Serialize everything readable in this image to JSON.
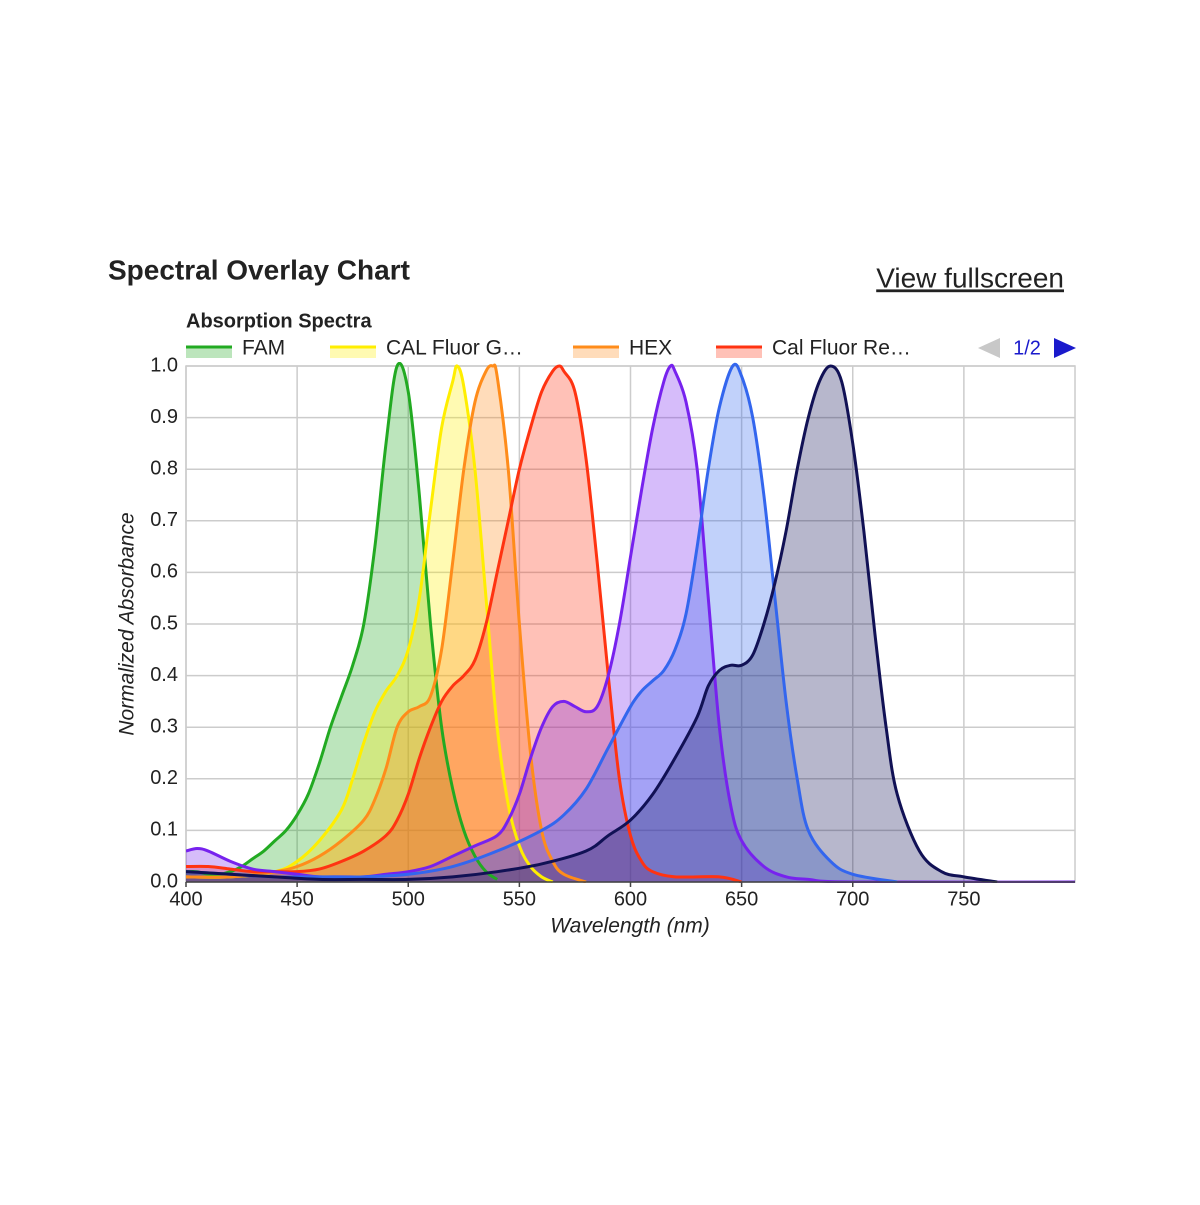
{
  "header": {
    "title": "Spectral Overlay Chart",
    "link": "View fullscreen"
  },
  "pager": "1/2",
  "chart_data": {
    "type": "area",
    "title": "Absorption Spectra",
    "x_label": "Wavelength (nm)",
    "y_label": "Normalized Absorbance",
    "xlim": [
      400,
      800
    ],
    "ylim": [
      0,
      1
    ],
    "xticks": [
      400,
      450,
      500,
      550,
      600,
      650,
      700,
      750
    ],
    "yticks": [
      {
        "value": 0,
        "label": "0.0"
      },
      0.1,
      0.2,
      0.3,
      0.4,
      0.5,
      0.6,
      0.7,
      0.8,
      0.9,
      {
        "value": 1,
        "label": "1.0"
      }
    ],
    "grid": true,
    "legend": "top",
    "series": [
      {
        "name": "FAM",
        "color": "#22aa22",
        "x": [
          400,
          405,
          410,
          415,
          420,
          425,
          430,
          435,
          440,
          445,
          450,
          455,
          460,
          465,
          470,
          475,
          480,
          485,
          490,
          495,
          500,
          505,
          510,
          515,
          520,
          525,
          530,
          535,
          540
        ],
        "values": [
          0.02,
          0.02,
          0.015,
          0.015,
          0.02,
          0.03,
          0.045,
          0.06,
          0.08,
          0.1,
          0.13,
          0.17,
          0.23,
          0.3,
          0.36,
          0.42,
          0.5,
          0.65,
          0.85,
          1.0,
          0.95,
          0.75,
          0.5,
          0.3,
          0.18,
          0.1,
          0.05,
          0.02,
          0.005
        ]
      },
      {
        "name": "CAL Fluor G…",
        "color": "#ffee00",
        "x": [
          400,
          420,
          440,
          450,
          460,
          470,
          475,
          480,
          485,
          490,
          495,
          500,
          505,
          510,
          515,
          520,
          522,
          525,
          530,
          535,
          540,
          545,
          550,
          555,
          560,
          565
        ],
        "values": [
          0.01,
          0.01,
          0.02,
          0.04,
          0.08,
          0.14,
          0.2,
          0.27,
          0.33,
          0.37,
          0.4,
          0.45,
          0.55,
          0.72,
          0.88,
          0.97,
          1.0,
          0.96,
          0.8,
          0.55,
          0.3,
          0.15,
          0.07,
          0.03,
          0.01,
          0
        ]
      },
      {
        "name": "HEX",
        "color": "#ff8c1a",
        "x": [
          400,
          420,
          440,
          450,
          460,
          470,
          480,
          485,
          490,
          495,
          500,
          505,
          510,
          515,
          520,
          525,
          530,
          535,
          538,
          540,
          545,
          550,
          555,
          560,
          565,
          570,
          580
        ],
        "values": [
          0.01,
          0.01,
          0.02,
          0.03,
          0.05,
          0.08,
          0.12,
          0.16,
          0.22,
          0.3,
          0.33,
          0.34,
          0.36,
          0.45,
          0.62,
          0.8,
          0.93,
          0.99,
          1.0,
          0.98,
          0.8,
          0.5,
          0.25,
          0.1,
          0.04,
          0.015,
          0
        ]
      },
      {
        "name": "Cal Fluor Re…",
        "color": "#ff3311",
        "x": [
          400,
          410,
          420,
          430,
          440,
          450,
          460,
          470,
          480,
          490,
          495,
          500,
          505,
          510,
          515,
          520,
          525,
          530,
          535,
          540,
          545,
          550,
          555,
          560,
          565,
          568,
          570,
          575,
          580,
          585,
          590,
          595,
          600,
          605,
          610,
          620,
          640,
          650
        ],
        "values": [
          0.03,
          0.03,
          0.025,
          0.02,
          0.02,
          0.02,
          0.025,
          0.04,
          0.06,
          0.09,
          0.12,
          0.17,
          0.24,
          0.3,
          0.35,
          0.38,
          0.4,
          0.43,
          0.5,
          0.6,
          0.7,
          0.8,
          0.88,
          0.95,
          0.99,
          1.0,
          0.99,
          0.95,
          0.82,
          0.62,
          0.4,
          0.2,
          0.09,
          0.04,
          0.02,
          0.01,
          0.01,
          0
        ]
      },
      {
        "color": "#7722ee",
        "x": [
          400,
          405,
          410,
          420,
          430,
          440,
          450,
          460,
          470,
          480,
          490,
          500,
          510,
          520,
          530,
          540,
          545,
          550,
          555,
          560,
          565,
          570,
          575,
          580,
          585,
          590,
          595,
          600,
          605,
          610,
          615,
          618,
          620,
          625,
          630,
          635,
          640,
          645,
          650,
          660,
          670,
          680,
          700,
          800
        ],
        "values": [
          0.06,
          0.065,
          0.06,
          0.04,
          0.025,
          0.02,
          0.015,
          0.01,
          0.01,
          0.01,
          0.015,
          0.02,
          0.03,
          0.05,
          0.07,
          0.09,
          0.12,
          0.17,
          0.24,
          0.3,
          0.34,
          0.35,
          0.34,
          0.33,
          0.34,
          0.4,
          0.5,
          0.63,
          0.76,
          0.88,
          0.97,
          1.0,
          0.99,
          0.93,
          0.8,
          0.55,
          0.3,
          0.15,
          0.08,
          0.03,
          0.01,
          0.005,
          0,
          0
        ]
      },
      {
        "color": "#3366ee",
        "x": [
          400,
          420,
          440,
          460,
          480,
          500,
          520,
          540,
          560,
          570,
          580,
          590,
          600,
          605,
          610,
          615,
          620,
          625,
          630,
          635,
          640,
          646,
          650,
          655,
          660,
          665,
          670,
          675,
          680,
          690,
          700,
          720
        ],
        "values": [
          0.02,
          0.015,
          0.01,
          0.01,
          0.01,
          0.015,
          0.03,
          0.06,
          0.1,
          0.13,
          0.18,
          0.26,
          0.34,
          0.37,
          0.39,
          0.41,
          0.45,
          0.52,
          0.65,
          0.8,
          0.92,
          1.0,
          0.98,
          0.9,
          0.75,
          0.55,
          0.35,
          0.2,
          0.1,
          0.04,
          0.015,
          0
        ]
      },
      {
        "color": "#111155",
        "x": [
          400,
          420,
          440,
          460,
          480,
          500,
          520,
          540,
          560,
          580,
          590,
          600,
          610,
          620,
          630,
          635,
          640,
          645,
          650,
          655,
          660,
          665,
          670,
          675,
          680,
          685,
          690,
          695,
          700,
          705,
          710,
          715,
          720,
          730,
          740,
          750,
          765
        ],
        "values": [
          0.02,
          0.015,
          0.01,
          0.005,
          0.005,
          0.005,
          0.01,
          0.02,
          0.035,
          0.06,
          0.09,
          0.12,
          0.17,
          0.24,
          0.32,
          0.38,
          0.41,
          0.42,
          0.42,
          0.44,
          0.5,
          0.58,
          0.68,
          0.8,
          0.9,
          0.97,
          1.0,
          0.97,
          0.85,
          0.68,
          0.48,
          0.3,
          0.17,
          0.06,
          0.02,
          0.01,
          0
        ]
      }
    ]
  }
}
